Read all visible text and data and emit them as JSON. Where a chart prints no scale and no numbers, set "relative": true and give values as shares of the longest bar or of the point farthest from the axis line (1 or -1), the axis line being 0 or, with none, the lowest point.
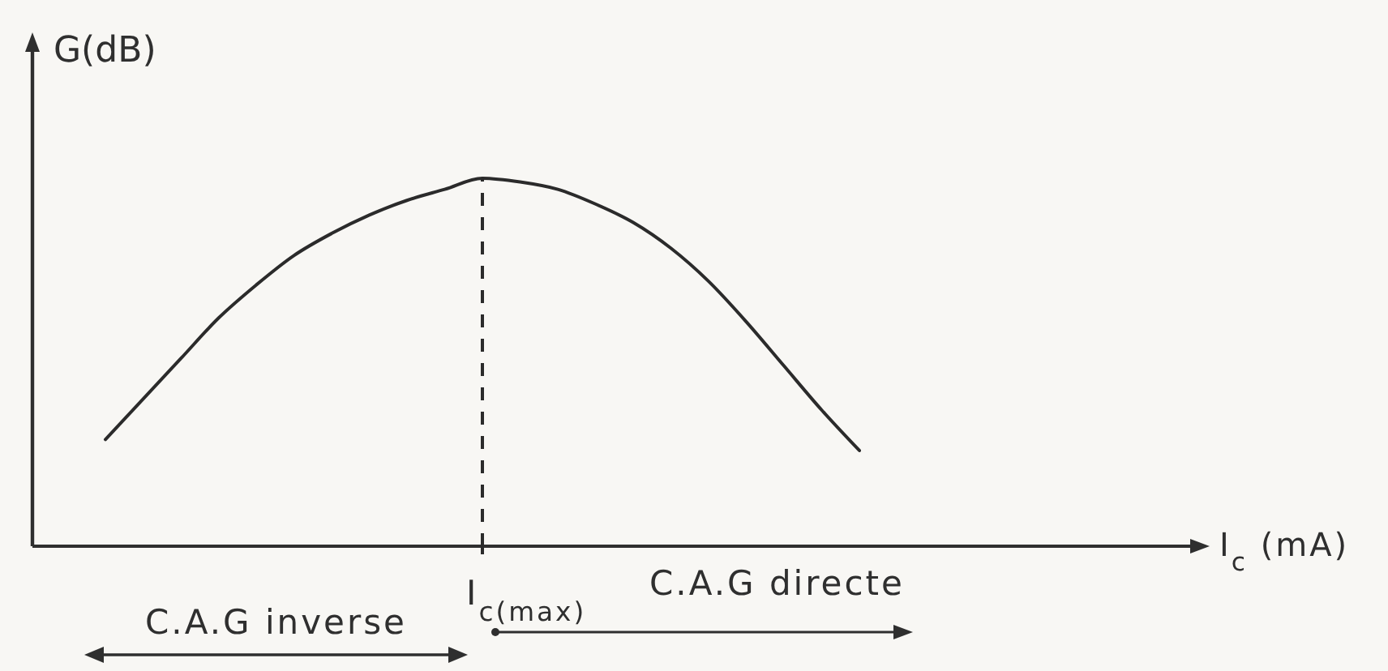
{
  "chart_data": {
    "type": "line",
    "relative": true,
    "ylabel": "G(dB)",
    "categories": [
      null,
      null,
      null,
      null,
      null,
      null,
      null,
      null,
      null,
      null,
      null,
      null,
      null,
      null,
      null,
      null,
      null,
      null,
      null,
      null,
      null
    ],
    "values": [
      0.29,
      0.4,
      0.51,
      0.62,
      0.71,
      0.79,
      0.85,
      0.9,
      0.94,
      0.97,
      1,
      0.99,
      0.97,
      0.93,
      0.88,
      0.81,
      0.72,
      0.61,
      0.49,
      0.37,
      0.26
    ],
    "color": "#2b2b2b",
    "ref_lines": [
      {
        "axis": "x",
        "value": "I$_{c(max)}$",
        "line_style": "dashed",
        "color": "#2b2b2b"
      }
    ],
    "annotations": [
      "C.A.G inverse",
      "C.A.G directe",
      "I$_{c}$ (mA)"
    ]
  }
}
